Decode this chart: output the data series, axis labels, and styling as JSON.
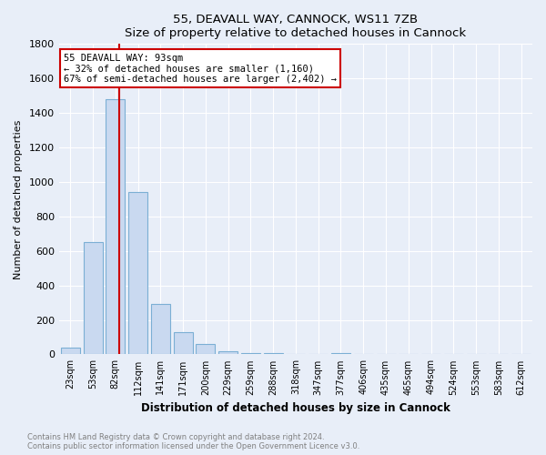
{
  "title": "55, DEAVALL WAY, CANNOCK, WS11 7ZB",
  "subtitle": "Size of property relative to detached houses in Cannock",
  "xlabel": "Distribution of detached houses by size in Cannock",
  "ylabel": "Number of detached properties",
  "categories": [
    "23sqm",
    "53sqm",
    "82sqm",
    "112sqm",
    "141sqm",
    "171sqm",
    "200sqm",
    "229sqm",
    "259sqm",
    "288sqm",
    "318sqm",
    "347sqm",
    "377sqm",
    "406sqm",
    "435sqm",
    "465sqm",
    "494sqm",
    "524sqm",
    "553sqm",
    "583sqm",
    "612sqm"
  ],
  "values": [
    40,
    650,
    1480,
    940,
    290,
    130,
    60,
    20,
    10,
    5,
    0,
    0,
    10,
    0,
    0,
    0,
    0,
    0,
    0,
    0,
    0
  ],
  "bar_color": "#c9d9f0",
  "bar_edge_color": "#7bafd4",
  "property_line_x": 2.15,
  "annotation_text1": "55 DEAVALL WAY: 93sqm",
  "annotation_text2": "← 32% of detached houses are smaller (1,160)",
  "annotation_text3": "67% of semi-detached houses are larger (2,402) →",
  "annotation_box_color": "#ffffff",
  "annotation_border_color": "#cc0000",
  "line_color": "#cc0000",
  "ylim": [
    0,
    1800
  ],
  "yticks": [
    0,
    200,
    400,
    600,
    800,
    1000,
    1200,
    1400,
    1600,
    1800
  ],
  "background_color": "#e8eef8",
  "grid_color": "#ffffff",
  "footer_text1": "Contains HM Land Registry data © Crown copyright and database right 2024.",
  "footer_text2": "Contains public sector information licensed under the Open Government Licence v3.0."
}
